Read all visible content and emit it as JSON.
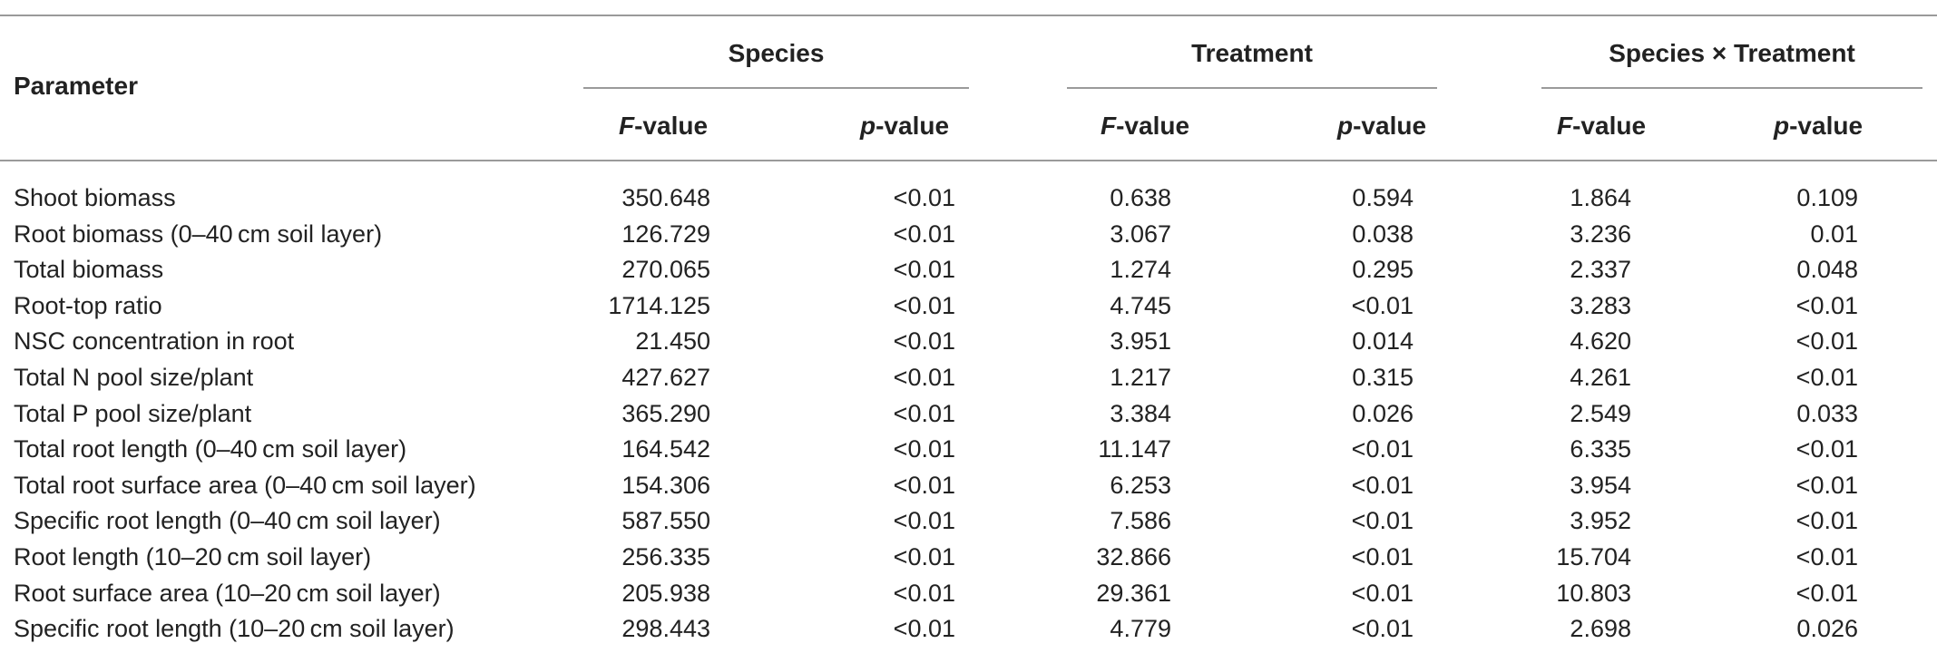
{
  "table": {
    "header": {
      "parameter": "Parameter",
      "groups": [
        "Species",
        "Treatment",
        "Species × Treatment"
      ],
      "f_italic": "F",
      "f_rest": "-value",
      "p_italic": "p",
      "p_rest": "-value"
    },
    "rows": [
      {
        "param": "Shoot biomass",
        "v": [
          "350.648",
          "<0.01",
          "0.638",
          "0.594",
          "1.864",
          "0.109"
        ]
      },
      {
        "param": "Root biomass (0–40 cm soil layer)",
        "v": [
          "126.729",
          "<0.01",
          "3.067",
          "0.038",
          "3.236",
          "0.01"
        ]
      },
      {
        "param": "Total biomass",
        "v": [
          "270.065",
          "<0.01",
          "1.274",
          "0.295",
          "2.337",
          "0.048"
        ]
      },
      {
        "param": "Root-top ratio",
        "v": [
          "1714.125",
          "<0.01",
          "4.745",
          "<0.01",
          "3.283",
          "<0.01"
        ]
      },
      {
        "param": "NSC concentration in root",
        "v": [
          "21.450",
          "<0.01",
          "3.951",
          "0.014",
          "4.620",
          "<0.01"
        ]
      },
      {
        "param": "Total N pool size/plant",
        "v": [
          "427.627",
          "<0.01",
          "1.217",
          "0.315",
          "4.261",
          "<0.01"
        ]
      },
      {
        "param": "Total P pool size/plant",
        "v": [
          "365.290",
          "<0.01",
          "3.384",
          "0.026",
          "2.549",
          "0.033"
        ]
      },
      {
        "param": "Total root length (0–40 cm soil layer)",
        "v": [
          "164.542",
          "<0.01",
          "11.147",
          "<0.01",
          "6.335",
          "<0.01"
        ]
      },
      {
        "param": "Total root surface area (0–40 cm soil layer)",
        "v": [
          "154.306",
          "<0.01",
          "6.253",
          "<0.01",
          "3.954",
          "<0.01"
        ]
      },
      {
        "param": "Specific root length (0–40 cm soil layer)",
        "v": [
          "587.550",
          "<0.01",
          "7.586",
          "<0.01",
          "3.952",
          "<0.01"
        ]
      },
      {
        "param": "Root length (10–20 cm soil layer)",
        "v": [
          "256.335",
          "<0.01",
          "32.866",
          "<0.01",
          "15.704",
          "<0.01"
        ]
      },
      {
        "param": "Root surface area (10–20 cm soil layer)",
        "v": [
          "205.938",
          "<0.01",
          "29.361",
          "<0.01",
          "10.803",
          "<0.01"
        ]
      },
      {
        "param": "Specific root length (10–20 cm soil layer)",
        "v": [
          "298.443",
          "<0.01",
          "4.779",
          "<0.01",
          "2.698",
          "0.026"
        ]
      }
    ]
  }
}
